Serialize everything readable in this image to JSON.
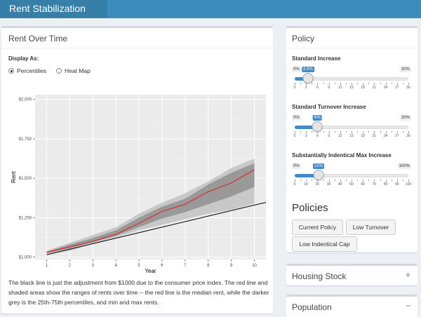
{
  "app": {
    "title": "Rent Stabilization"
  },
  "main": {
    "title": "Rent Over Time",
    "display_label": "Display As:",
    "options": [
      {
        "label": "Percentiles",
        "selected": true
      },
      {
        "label": "Heat Map",
        "selected": false
      }
    ],
    "caption": "The black line is just the adjustment from $1000 due to the consumer price index. The red line and shaded areas show the ranges of rents over time -- the red line is the median rent, while the darker grey is the 25th-75th percentiles, and min and max rents."
  },
  "policy": {
    "title": "Policy",
    "sliders": [
      {
        "label": "Standard Increase",
        "min_label": "0%",
        "max_label": "30%",
        "value_label": "3.5%",
        "value": 3.5,
        "min": 0,
        "max": 30,
        "ticks": [
          "0",
          "3",
          "6",
          "9",
          "12",
          "15",
          "18",
          "21",
          "24",
          "27",
          "30"
        ]
      },
      {
        "label": "Standard Turnover Increase",
        "min_label": "0%",
        "max_label": "30%",
        "value_label": "6%",
        "value": 6,
        "min": 0,
        "max": 30,
        "ticks": [
          "0",
          "3",
          "6",
          "9",
          "12",
          "15",
          "18",
          "21",
          "24",
          "27",
          "30"
        ]
      },
      {
        "label": "Substantially Indentical Max Increase",
        "min_label": "0%",
        "max_label": "100%",
        "value_label": "21%",
        "value": 21,
        "min": 0,
        "max": 100,
        "ticks": [
          "0",
          "10",
          "20",
          "30",
          "40",
          "50",
          "60",
          "70",
          "80",
          "90",
          "100"
        ]
      }
    ],
    "policies_title": "Policies",
    "buttons": [
      "Current Policy",
      "Low Turnover",
      "Low Indentical Cap"
    ]
  },
  "housing": {
    "title": "Housing Stock",
    "tool": "+"
  },
  "population": {
    "title": "Population",
    "tool": "−"
  },
  "colors": {
    "header": "#3c8dbc",
    "brand": "#367fa9",
    "accent": "#428bca",
    "median": "#e41a1c"
  },
  "chart_data": {
    "type": "area",
    "xlabel": "Year",
    "ylabel": "Rent",
    "x": [
      1,
      2,
      3,
      4,
      5,
      6,
      7,
      8,
      9,
      10
    ],
    "x_ticks": [
      "1",
      "2",
      "3",
      "4",
      "5",
      "6",
      "7",
      "8",
      "9",
      "10"
    ],
    "y_ticks": [
      "$1,000",
      "$1,250",
      "$1,500",
      "$1,750",
      "$2,000"
    ],
    "xlim": [
      0.5,
      10.5
    ],
    "ylim": [
      985,
      2030
    ],
    "grid": true,
    "series": [
      {
        "name": "min",
        "values": [
          1020,
          1040,
          1085,
          1125,
          1170,
          1205,
          1240,
          1275,
          1300,
          1340
        ]
      },
      {
        "name": "p25",
        "values": [
          1025,
          1055,
          1095,
          1135,
          1190,
          1245,
          1285,
          1335,
          1385,
          1445
        ]
      },
      {
        "name": "median",
        "values": [
          1030,
          1065,
          1100,
          1145,
          1215,
          1290,
          1335,
          1415,
          1470,
          1555
        ]
      },
      {
        "name": "p75",
        "values": [
          1035,
          1080,
          1120,
          1170,
          1250,
          1320,
          1370,
          1460,
          1535,
          1595
        ]
      },
      {
        "name": "max",
        "values": [
          1040,
          1090,
          1140,
          1190,
          1275,
          1345,
          1405,
          1480,
          1565,
          1625
        ]
      },
      {
        "name": "cpi",
        "values": [
          1015,
          1050,
          1085,
          1120,
          1155,
          1190,
          1225,
          1260,
          1295,
          1330
        ]
      }
    ]
  }
}
